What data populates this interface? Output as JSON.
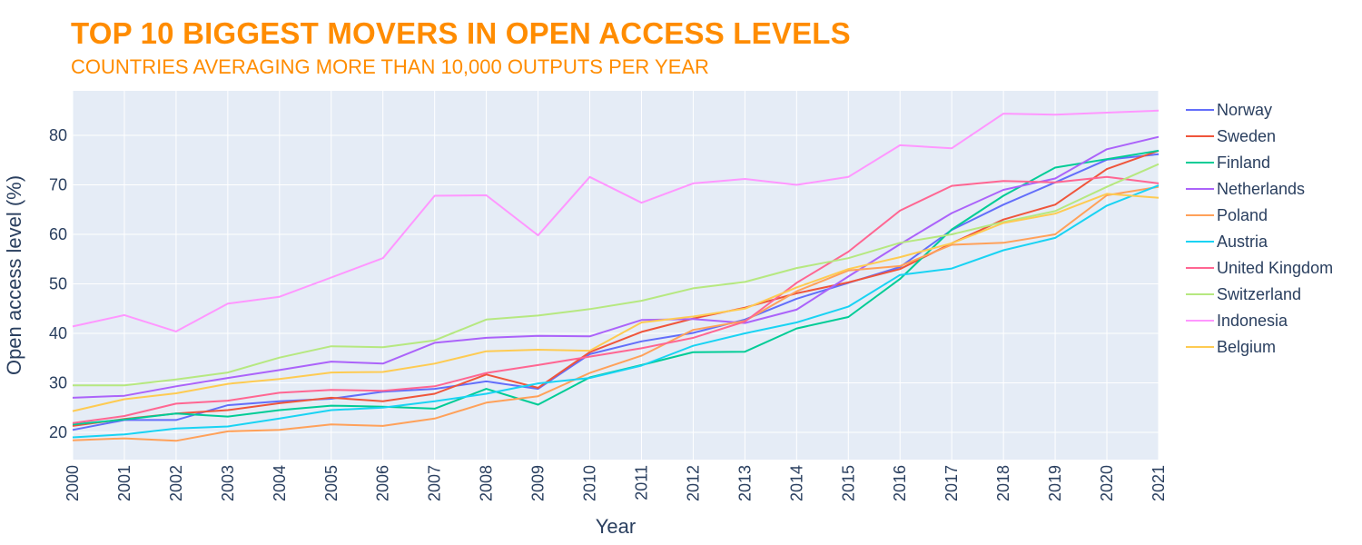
{
  "chart_data": {
    "type": "line",
    "title": "TOP 10 BIGGEST MOVERS IN OPEN ACCESS LEVELS",
    "subtitle": "COUNTRIES AVERAGING MORE THAN 10,000 OUTPUTS PER YEAR",
    "xlabel": "Year",
    "ylabel": "Open access level (%)",
    "x": [
      "2000",
      "2001",
      "2002",
      "2003",
      "2004",
      "2005",
      "2006",
      "2007",
      "2008",
      "2009",
      "2010",
      "2011",
      "2012",
      "2013",
      "2014",
      "2015",
      "2016",
      "2017",
      "2018",
      "2019",
      "2020",
      "2021"
    ],
    "xlim": [
      2000,
      2021
    ],
    "ylim": [
      14.5,
      89
    ],
    "yticks": [
      20,
      30,
      40,
      50,
      60,
      70,
      80
    ],
    "grid": true,
    "legend_position": "right",
    "series": [
      {
        "name": "Norway",
        "color": "#636efa",
        "values": [
          20.5,
          22.5,
          22.5,
          25.5,
          26.3,
          26.8,
          28.2,
          28.8,
          30.3,
          28.8,
          35.8,
          38.4,
          40.1,
          42.8,
          47.0,
          50.2,
          53.4,
          60.9,
          66.0,
          70.5,
          75.1,
          76.2
        ]
      },
      {
        "name": "Sweden",
        "color": "#ef553b",
        "values": [
          21.3,
          22.7,
          23.8,
          24.5,
          25.9,
          27.0,
          26.3,
          27.8,
          31.7,
          29.0,
          36.2,
          40.3,
          43.0,
          45.2,
          48.1,
          50.3,
          53.0,
          58.2,
          63.0,
          66.0,
          73.2,
          76.9
        ]
      },
      {
        "name": "Finland",
        "color": "#00cc96",
        "values": [
          21.6,
          22.6,
          23.8,
          23.2,
          24.5,
          25.4,
          25.2,
          24.8,
          28.8,
          25.6,
          31.1,
          33.6,
          36.2,
          36.3,
          41.0,
          43.3,
          51.0,
          61.0,
          67.8,
          73.5,
          75.2,
          76.9
        ]
      },
      {
        "name": "Netherlands",
        "color": "#ab63fa",
        "values": [
          27.0,
          27.4,
          29.3,
          31.0,
          32.6,
          34.3,
          33.9,
          38.1,
          39.1,
          39.5,
          39.4,
          42.7,
          42.9,
          42.1,
          44.8,
          51.5,
          58.0,
          64.3,
          69.0,
          71.3,
          77.2,
          79.7
        ]
      },
      {
        "name": "Poland",
        "color": "#ffa15a",
        "values": [
          18.4,
          18.8,
          18.3,
          20.2,
          20.5,
          21.6,
          21.3,
          22.8,
          26.0,
          27.3,
          32.0,
          35.5,
          40.7,
          42.5,
          48.5,
          52.7,
          53.6,
          57.9,
          58.3,
          60.0,
          67.9,
          69.6
        ]
      },
      {
        "name": "Austria",
        "color": "#19d3f3",
        "values": [
          19.0,
          19.6,
          20.8,
          21.2,
          22.8,
          24.5,
          25.0,
          26.3,
          27.8,
          29.9,
          31.0,
          33.5,
          37.5,
          40.0,
          42.2,
          45.4,
          51.8,
          53.1,
          56.8,
          59.3,
          65.8,
          69.9
        ]
      },
      {
        "name": "United Kingdom",
        "color": "#ff6692",
        "values": [
          21.9,
          23.3,
          25.8,
          26.4,
          28.0,
          28.6,
          28.4,
          29.3,
          32.0,
          33.6,
          35.3,
          37.0,
          39.1,
          42.4,
          50.2,
          56.5,
          64.8,
          69.8,
          70.8,
          70.5,
          71.6,
          70.3
        ]
      },
      {
        "name": "Switzerland",
        "color": "#b6e880",
        "values": [
          29.5,
          29.5,
          30.7,
          32.1,
          35.1,
          37.4,
          37.2,
          38.6,
          42.8,
          43.6,
          44.9,
          46.6,
          49.1,
          50.4,
          53.2,
          55.2,
          58.3,
          60.0,
          62.5,
          64.7,
          69.6,
          74.2
        ]
      },
      {
        "name": "Indonesia",
        "color": "#ff97ff",
        "values": [
          41.4,
          43.7,
          40.4,
          46.0,
          47.4,
          51.3,
          55.2,
          67.8,
          67.9,
          59.8,
          71.6,
          66.4,
          70.3,
          71.2,
          70.0,
          71.6,
          78.0,
          77.4,
          84.4,
          84.2,
          84.6,
          85.0
        ]
      },
      {
        "name": "Belgium",
        "color": "#fecb52",
        "values": [
          24.3,
          26.7,
          27.9,
          29.8,
          30.8,
          32.1,
          32.2,
          33.9,
          36.4,
          36.7,
          36.5,
          42.2,
          43.4,
          45.0,
          49.3,
          53.0,
          55.4,
          58.2,
          62.3,
          64.2,
          68.2,
          67.4
        ]
      }
    ]
  }
}
